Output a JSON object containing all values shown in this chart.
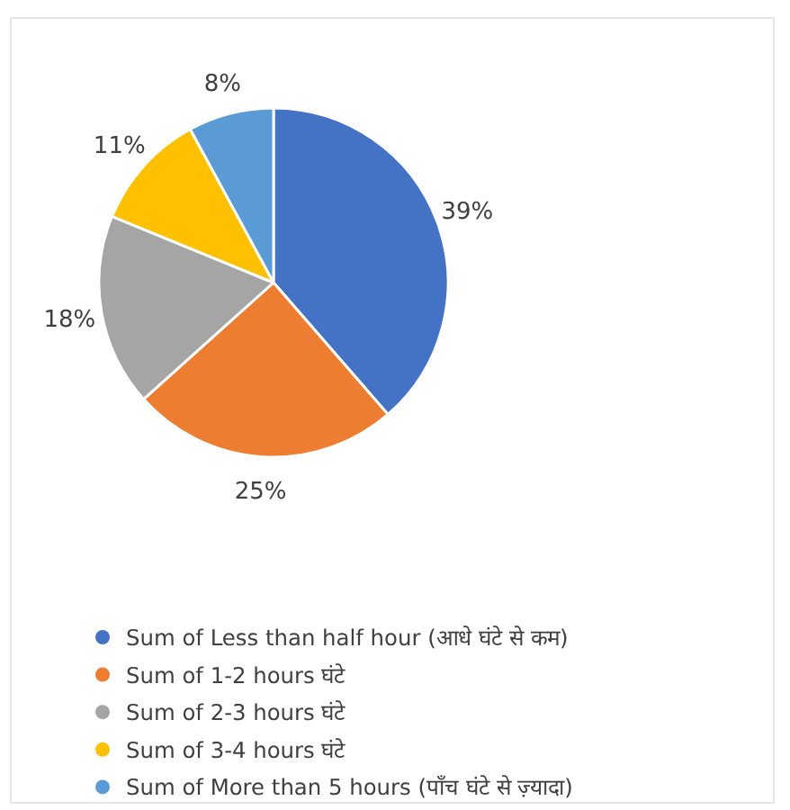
{
  "chart_data": {
    "type": "pie",
    "categories": [
      "Sum of Less than half hour (आधे घंटे से कम)",
      "Sum of 1-2 hours घंटे",
      "Sum of 2-3 hours घंटे",
      "Sum of 3-4 hours घंटे",
      "Sum of More than 5 hours (पाँच घंटे से ज़्यादा)"
    ],
    "values": [
      39,
      25,
      18,
      11,
      8
    ],
    "colors": [
      "#4472c4",
      "#ed7d31",
      "#a5a5a5",
      "#ffc000",
      "#5b9bd5"
    ],
    "value_labels": [
      "39%",
      "25%",
      "18%",
      "11%",
      "8%"
    ],
    "legend": "bottom"
  }
}
